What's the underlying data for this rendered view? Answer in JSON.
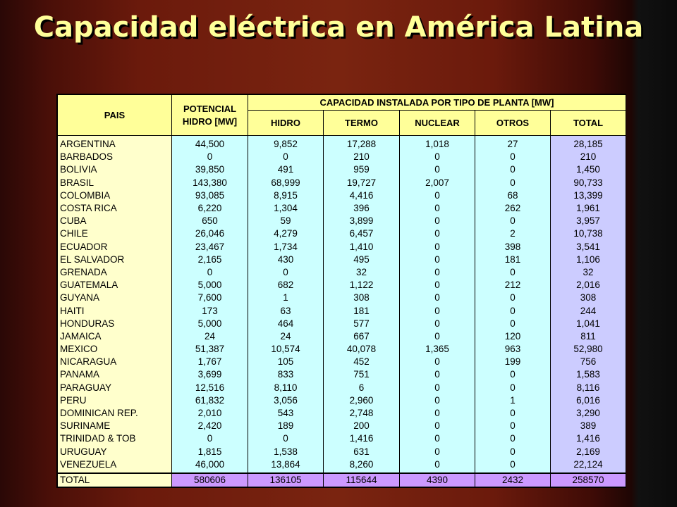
{
  "title": "Capacidad eléctrica en América Latina",
  "table": {
    "header": {
      "pais": "PAIS",
      "potencial": "POTENCIAL HIDRO [MW]",
      "group": "CAPACIDAD INSTALADA POR TIPO DE PLANTA [MW]",
      "hidro": "HIDRO",
      "termo": "TERMO",
      "nuclear": "NUCLEAR",
      "otros": "OTROS",
      "total": "TOTAL"
    },
    "rows": [
      {
        "pais": "ARGENTINA",
        "potencial": "44,500",
        "hidro": "9,852",
        "termo": "17,288",
        "nuclear": "1,018",
        "otros": "27",
        "total": "28,185"
      },
      {
        "pais": "BARBADOS",
        "potencial": "0",
        "hidro": "0",
        "termo": "210",
        "nuclear": "0",
        "otros": "0",
        "total": "210"
      },
      {
        "pais": "BOLIVIA",
        "potencial": "39,850",
        "hidro": "491",
        "termo": "959",
        "nuclear": "0",
        "otros": "0",
        "total": "1,450"
      },
      {
        "pais": "BRASIL",
        "potencial": "143,380",
        "hidro": "68,999",
        "termo": "19,727",
        "nuclear": "2,007",
        "otros": "0",
        "total": "90,733"
      },
      {
        "pais": "COLOMBIA",
        "potencial": "93,085",
        "hidro": "8,915",
        "termo": "4,416",
        "nuclear": "0",
        "otros": "68",
        "total": "13,399"
      },
      {
        "pais": "COSTA RICA",
        "potencial": "6,220",
        "hidro": "1,304",
        "termo": "396",
        "nuclear": "0",
        "otros": "262",
        "total": "1,961"
      },
      {
        "pais": "CUBA",
        "potencial": "650",
        "hidro": "59",
        "termo": "3,899",
        "nuclear": "0",
        "otros": "0",
        "total": "3,957"
      },
      {
        "pais": "CHILE",
        "potencial": "26,046",
        "hidro": "4,279",
        "termo": "6,457",
        "nuclear": "0",
        "otros": "2",
        "total": "10,738"
      },
      {
        "pais": "ECUADOR",
        "potencial": "23,467",
        "hidro": "1,734",
        "termo": "1,410",
        "nuclear": "0",
        "otros": "398",
        "total": "3,541"
      },
      {
        "pais": "EL SALVADOR",
        "potencial": "2,165",
        "hidro": "430",
        "termo": "495",
        "nuclear": "0",
        "otros": "181",
        "total": "1,106"
      },
      {
        "pais": "GRENADA",
        "potencial": "0",
        "hidro": "0",
        "termo": "32",
        "nuclear": "0",
        "otros": "0",
        "total": "32"
      },
      {
        "pais": "GUATEMALA",
        "potencial": "5,000",
        "hidro": "682",
        "termo": "1,122",
        "nuclear": "0",
        "otros": "212",
        "total": "2,016"
      },
      {
        "pais": "GUYANA",
        "potencial": "7,600",
        "hidro": "1",
        "termo": "308",
        "nuclear": "0",
        "otros": "0",
        "total": "308"
      },
      {
        "pais": "HAITI",
        "potencial": "173",
        "hidro": "63",
        "termo": "181",
        "nuclear": "0",
        "otros": "0",
        "total": "244"
      },
      {
        "pais": "HONDURAS",
        "potencial": "5,000",
        "hidro": "464",
        "termo": "577",
        "nuclear": "0",
        "otros": "0",
        "total": "1,041"
      },
      {
        "pais": "JAMAICA",
        "potencial": "24",
        "hidro": "24",
        "termo": "667",
        "nuclear": "0",
        "otros": "120",
        "total": "811"
      },
      {
        "pais": "MEXICO",
        "potencial": "51,387",
        "hidro": "10,574",
        "termo": "40,078",
        "nuclear": "1,365",
        "otros": "963",
        "total": "52,980"
      },
      {
        "pais": "NICARAGUA",
        "potencial": "1,767",
        "hidro": "105",
        "termo": "452",
        "nuclear": "0",
        "otros": "199",
        "total": "756"
      },
      {
        "pais": "PANAMA",
        "potencial": "3,699",
        "hidro": "833",
        "termo": "751",
        "nuclear": "0",
        "otros": "0",
        "total": "1,583"
      },
      {
        "pais": "PARAGUAY",
        "potencial": "12,516",
        "hidro": "8,110",
        "termo": "6",
        "nuclear": "0",
        "otros": "0",
        "total": "8,116"
      },
      {
        "pais": "PERU",
        "potencial": "61,832",
        "hidro": "3,056",
        "termo": "2,960",
        "nuclear": "0",
        "otros": "1",
        "total": "6,016"
      },
      {
        "pais": "DOMINICAN REP.",
        "potencial": "2,010",
        "hidro": "543",
        "termo": "2,748",
        "nuclear": "0",
        "otros": "0",
        "total": "3,290"
      },
      {
        "pais": "SURINAME",
        "potencial": "2,420",
        "hidro": "189",
        "termo": "200",
        "nuclear": "0",
        "otros": "0",
        "total": "389"
      },
      {
        "pais": "TRINIDAD & TOB",
        "potencial": "0",
        "hidro": "0",
        "termo": "1,416",
        "nuclear": "0",
        "otros": "0",
        "total": "1,416"
      },
      {
        "pais": "URUGUAY",
        "potencial": "1,815",
        "hidro": "1,538",
        "termo": "631",
        "nuclear": "0",
        "otros": "0",
        "total": "2,169"
      },
      {
        "pais": "VENEZUELA",
        "potencial": "46,000",
        "hidro": "13,864",
        "termo": "8,260",
        "nuclear": "0",
        "otros": "0",
        "total": "22,124"
      }
    ],
    "totals": {
      "label": "TOTAL",
      "potencial": "580606",
      "hidro": "136105",
      "termo": "115644",
      "nuclear": "4390",
      "otros": "2432",
      "total": "258570"
    }
  }
}
